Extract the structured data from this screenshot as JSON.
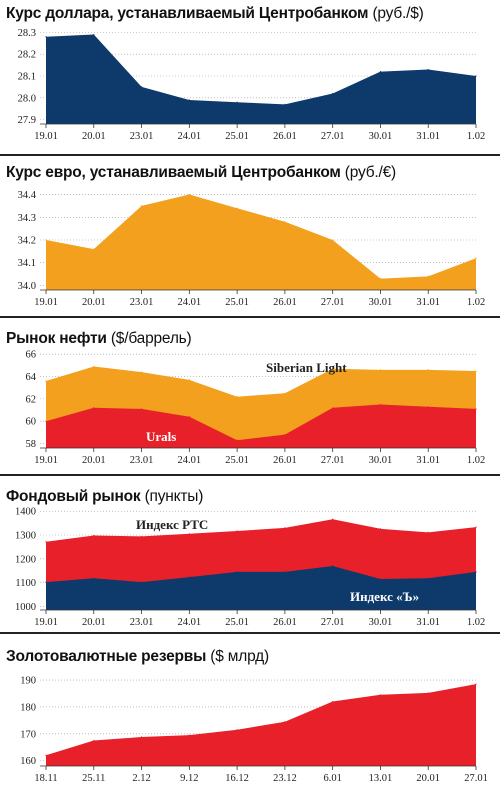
{
  "chart_data": [
    {
      "type": "area",
      "title": "Курс доллара, устанавливаемый Центробанком",
      "unit": "(руб./$)",
      "categories": [
        "19.01",
        "20.01",
        "23.01",
        "24.01",
        "25.01",
        "26.01",
        "27.01",
        "30.01",
        "31.01",
        "1.02"
      ],
      "series": [
        {
          "values": [
            28.28,
            28.29,
            28.05,
            27.99,
            27.98,
            27.97,
            28.02,
            28.12,
            28.13,
            28.1
          ]
        }
      ],
      "yticks": [
        27.9,
        28.0,
        28.1,
        28.2,
        28.3
      ],
      "ylim": [
        27.88,
        28.32
      ],
      "color": "#0d3a6b"
    },
    {
      "type": "area",
      "title": "Курс евро, устанавливаемый Центробанком",
      "unit": "(руб./€)",
      "categories": [
        "19.01",
        "20.01",
        "23.01",
        "24.01",
        "25.01",
        "26.01",
        "27.01",
        "30.01",
        "31.01",
        "1.02"
      ],
      "series": [
        {
          "values": [
            34.2,
            34.16,
            34.35,
            34.4,
            34.34,
            34.28,
            34.2,
            34.03,
            34.04,
            34.12
          ]
        }
      ],
      "yticks": [
        34.0,
        34.1,
        34.2,
        34.3,
        34.4
      ],
      "ylim": [
        33.98,
        34.42
      ],
      "color": "#f2a01e"
    },
    {
      "type": "area",
      "title": "Рынок нефти",
      "unit": "($/баррель)",
      "categories": [
        "19.01",
        "20.01",
        "23.01",
        "24.01",
        "25.01",
        "26.01",
        "27.01",
        "30.01",
        "31.01",
        "1.02"
      ],
      "series": [
        {
          "name": "Siberian Light",
          "values": [
            63.6,
            64.9,
            64.4,
            63.7,
            62.2,
            62.5,
            64.7,
            64.6,
            64.6,
            64.5
          ],
          "color": "#f2a01e"
        },
        {
          "name": "Urals",
          "values": [
            60.0,
            61.2,
            61.1,
            60.4,
            58.3,
            58.8,
            61.2,
            61.5,
            61.3,
            61.1
          ],
          "color": "#e8202a"
        }
      ],
      "yticks": [
        58,
        60,
        62,
        64,
        66
      ],
      "ylim": [
        57.6,
        66.2
      ]
    },
    {
      "type": "area",
      "title": "Фондовый рынок",
      "unit": "(пункты)",
      "categories": [
        "19.01",
        "20.01",
        "23.01",
        "24.01",
        "25.01",
        "26.01",
        "27.01",
        "30.01",
        "31.01",
        "1.02"
      ],
      "series": [
        {
          "name": "Индекс РТС",
          "values": [
            1272,
            1298,
            1294,
            1305,
            1317,
            1330,
            1366,
            1326,
            1311,
            1333
          ],
          "color": "#e8202a"
        },
        {
          "name": "Индекс «Ъ»",
          "values": [
            1102,
            1118,
            1102,
            1123,
            1145,
            1145,
            1170,
            1115,
            1118,
            1145
          ],
          "color": "#0d3a6b"
        }
      ],
      "yticks": [
        1000,
        1100,
        1200,
        1300,
        1400
      ],
      "ylim": [
        985,
        1405
      ]
    },
    {
      "type": "area",
      "title": "Золотовалютные резервы",
      "unit": "($ млрд)",
      "categories": [
        "18.11",
        "25.11",
        "2.12",
        "9.12",
        "16.12",
        "23.12",
        "6.01",
        "13.01",
        "20.01",
        "27.01"
      ],
      "series": [
        {
          "values": [
            162.0,
            167.5,
            168.8,
            169.5,
            171.5,
            174.5,
            182.0,
            184.5,
            185.2,
            188.5
          ]
        }
      ],
      "yticks": [
        160,
        170,
        180,
        190
      ],
      "ylim": [
        158,
        193
      ],
      "color": "#e8202a"
    }
  ]
}
